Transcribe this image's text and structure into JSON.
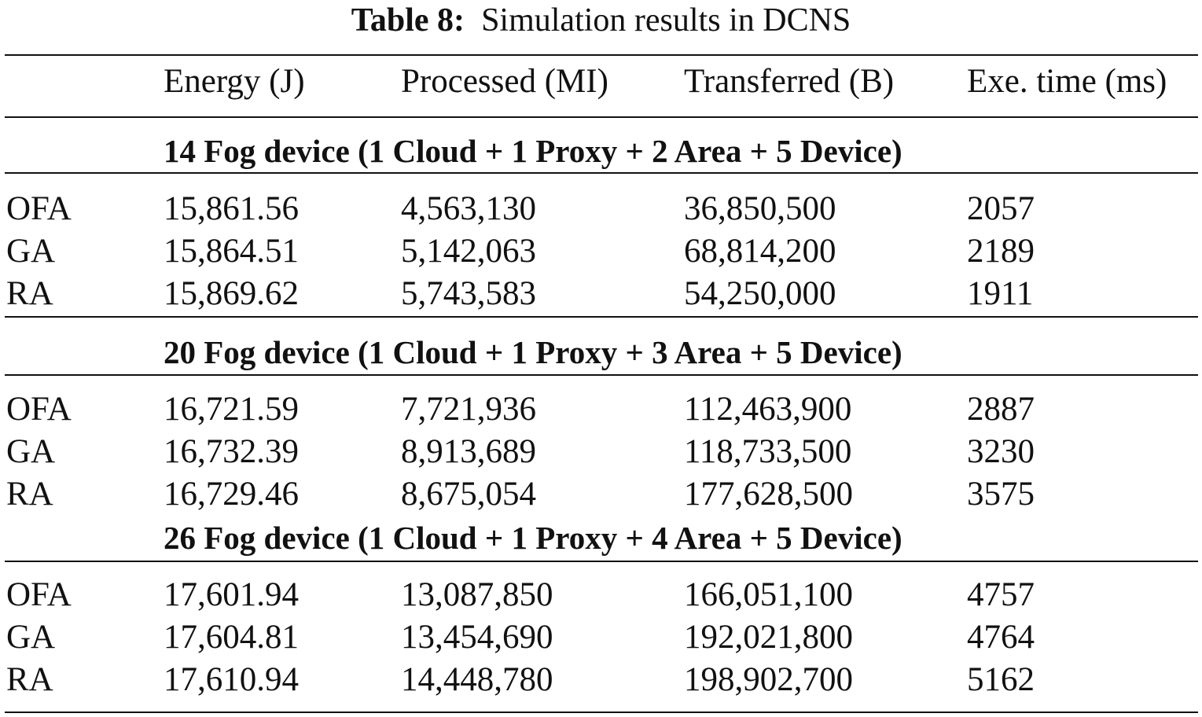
{
  "caption": {
    "label": "Table 8:",
    "text": "Simulation results in DCNS"
  },
  "header": [
    "",
    "Energy (J)",
    "Processed (MI)",
    "Transferred (B)",
    "Exe. time (ms)"
  ],
  "groups": [
    {
      "title": "14 Fog device (1 Cloud + 1 Proxy + 2 Area + 5 Device)",
      "rows": [
        [
          "OFA",
          "15,861.56",
          "4,563,130",
          "36,850,500",
          "2057"
        ],
        [
          "GA",
          "15,864.51",
          "5,142,063",
          "68,814,200",
          "2189"
        ],
        [
          "RA",
          "15,869.62",
          "5,743,583",
          "54,250,000",
          "1911"
        ]
      ]
    },
    {
      "title": "20 Fog device (1 Cloud + 1 Proxy + 3 Area + 5 Device)",
      "rows": [
        [
          "OFA",
          "16,721.59",
          "7,721,936",
          "112,463,900",
          "2887"
        ],
        [
          "GA",
          "16,732.39",
          "8,913,689",
          "118,733,500",
          "3230"
        ],
        [
          "RA",
          "16,729.46",
          "8,675,054",
          "177,628,500",
          "3575"
        ]
      ]
    },
    {
      "title": "26 Fog device (1 Cloud + 1 Proxy + 4 Area + 5 Device)",
      "rows": [
        [
          "OFA",
          "17,601.94",
          "13,087,850",
          "166,051,100",
          "4757"
        ],
        [
          "GA",
          "17,604.81",
          "13,454,690",
          "192,021,800",
          "4764"
        ],
        [
          "RA",
          "17,610.94",
          "14,448,780",
          "198,902,700",
          "5162"
        ]
      ]
    }
  ]
}
